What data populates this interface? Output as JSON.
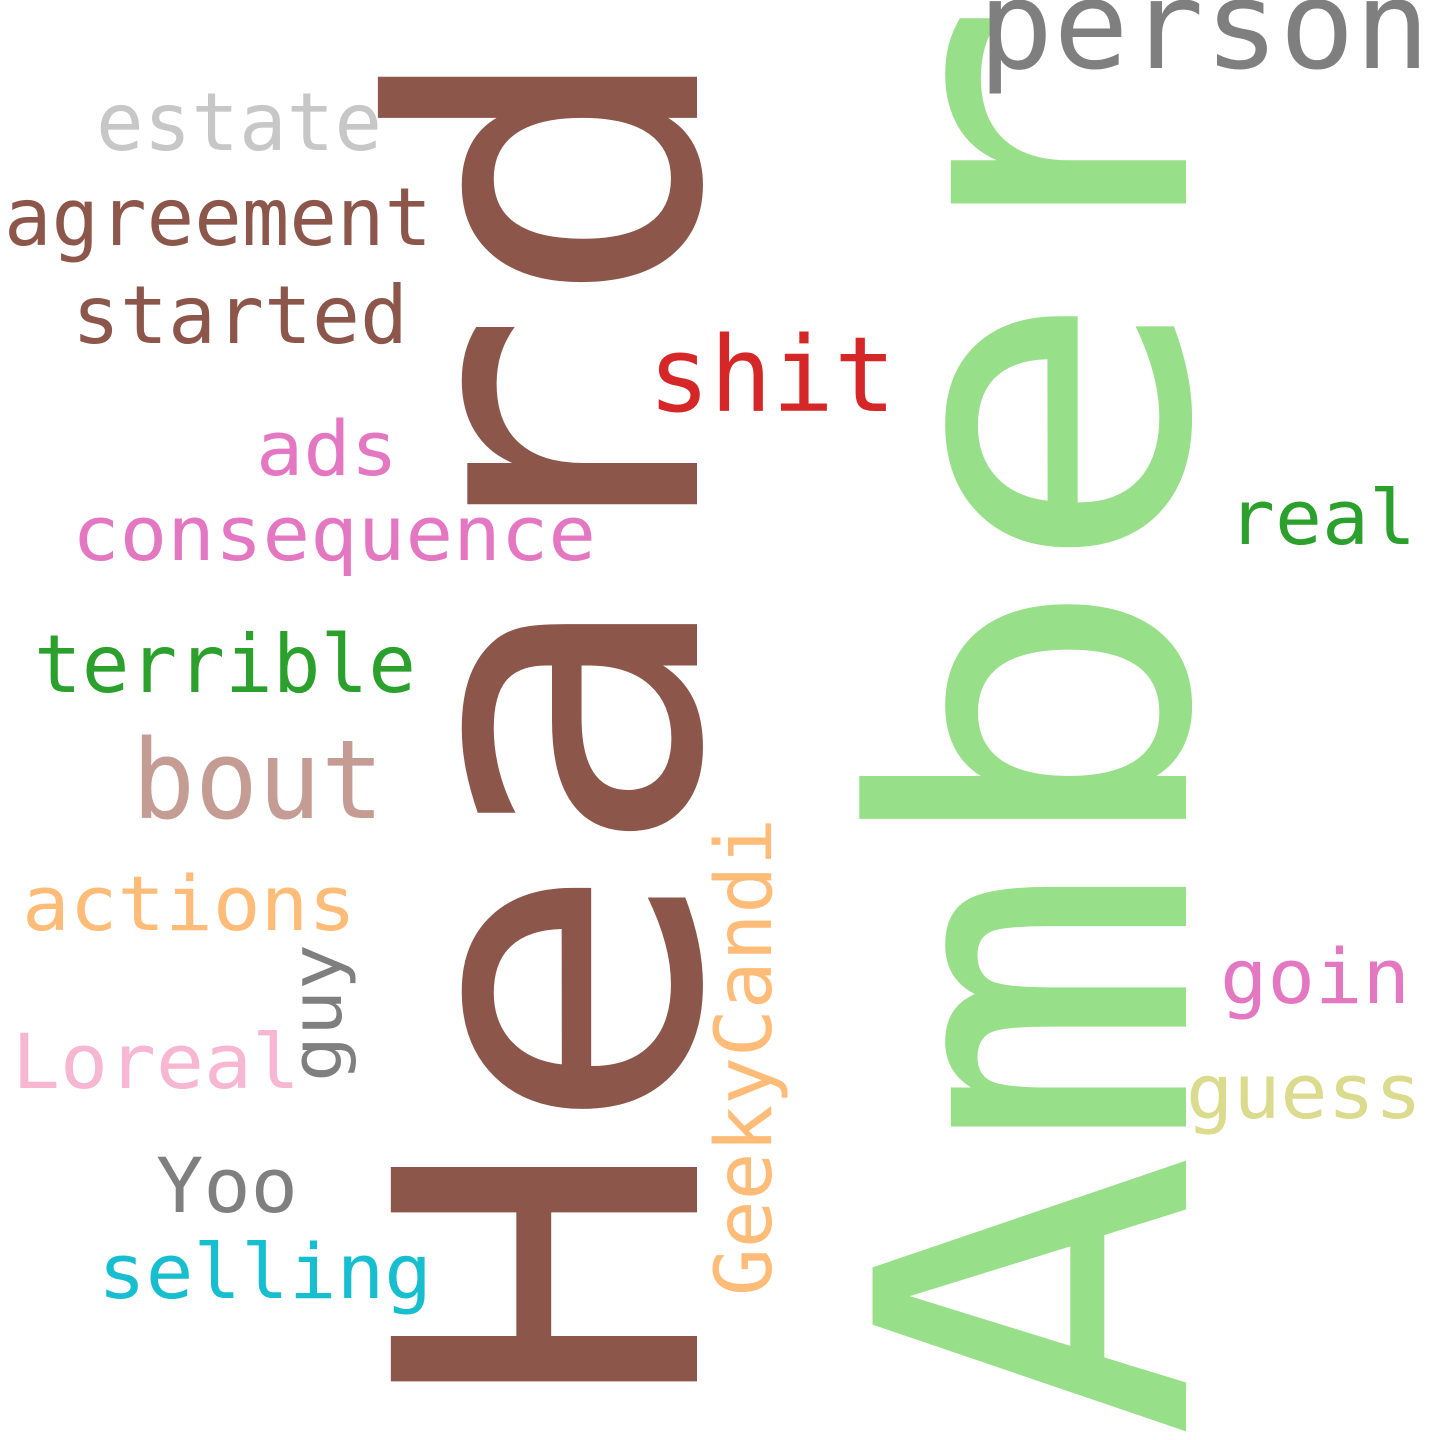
{
  "words": [
    {
      "id": "word-amber",
      "text": "Amber",
      "color": "#98df8a",
      "rotated": true
    },
    {
      "id": "word-heard",
      "text": "Heard",
      "color": "#8c564b",
      "rotated": true
    },
    {
      "id": "word-person",
      "text": "person",
      "color": "#7f7f7f",
      "rotated": false
    },
    {
      "id": "word-estate",
      "text": "estate",
      "color": "#c7c7c7",
      "rotated": false
    },
    {
      "id": "word-agreement",
      "text": "agreement",
      "color": "#8c564b",
      "rotated": false
    },
    {
      "id": "word-started",
      "text": "started",
      "color": "#8c564b",
      "rotated": false
    },
    {
      "id": "word-shit",
      "text": "shit",
      "color": "#d62728",
      "rotated": false
    },
    {
      "id": "word-ads",
      "text": "ads",
      "color": "#e377c2",
      "rotated": false
    },
    {
      "id": "word-real",
      "text": "real",
      "color": "#2ca02c",
      "rotated": false
    },
    {
      "id": "word-consequence",
      "text": "consequence",
      "color": "#e377c2",
      "rotated": false
    },
    {
      "id": "word-terrible",
      "text": "terrible",
      "color": "#2ca02c",
      "rotated": false
    },
    {
      "id": "word-bout",
      "text": "bout",
      "color": "#c49c94",
      "rotated": false
    },
    {
      "id": "word-actions",
      "text": "actions",
      "color": "#ffbb78",
      "rotated": false
    },
    {
      "id": "word-geekycandi",
      "text": "GeekyCandi",
      "color": "#ffbb78",
      "rotated": true
    },
    {
      "id": "word-guy",
      "text": "guy",
      "color": "#7f7f7f",
      "rotated": true
    },
    {
      "id": "word-goin",
      "text": "goin",
      "color": "#e377c2",
      "rotated": false
    },
    {
      "id": "word-loreal",
      "text": "Loreal",
      "color": "#f7b6d2",
      "rotated": false
    },
    {
      "id": "word-guess",
      "text": "guess",
      "color": "#dbdb8d",
      "rotated": false
    },
    {
      "id": "word-yoo",
      "text": "Yoo",
      "color": "#7f7f7f",
      "rotated": false
    },
    {
      "id": "word-selling",
      "text": "selling",
      "color": "#17becf",
      "rotated": false
    }
  ]
}
